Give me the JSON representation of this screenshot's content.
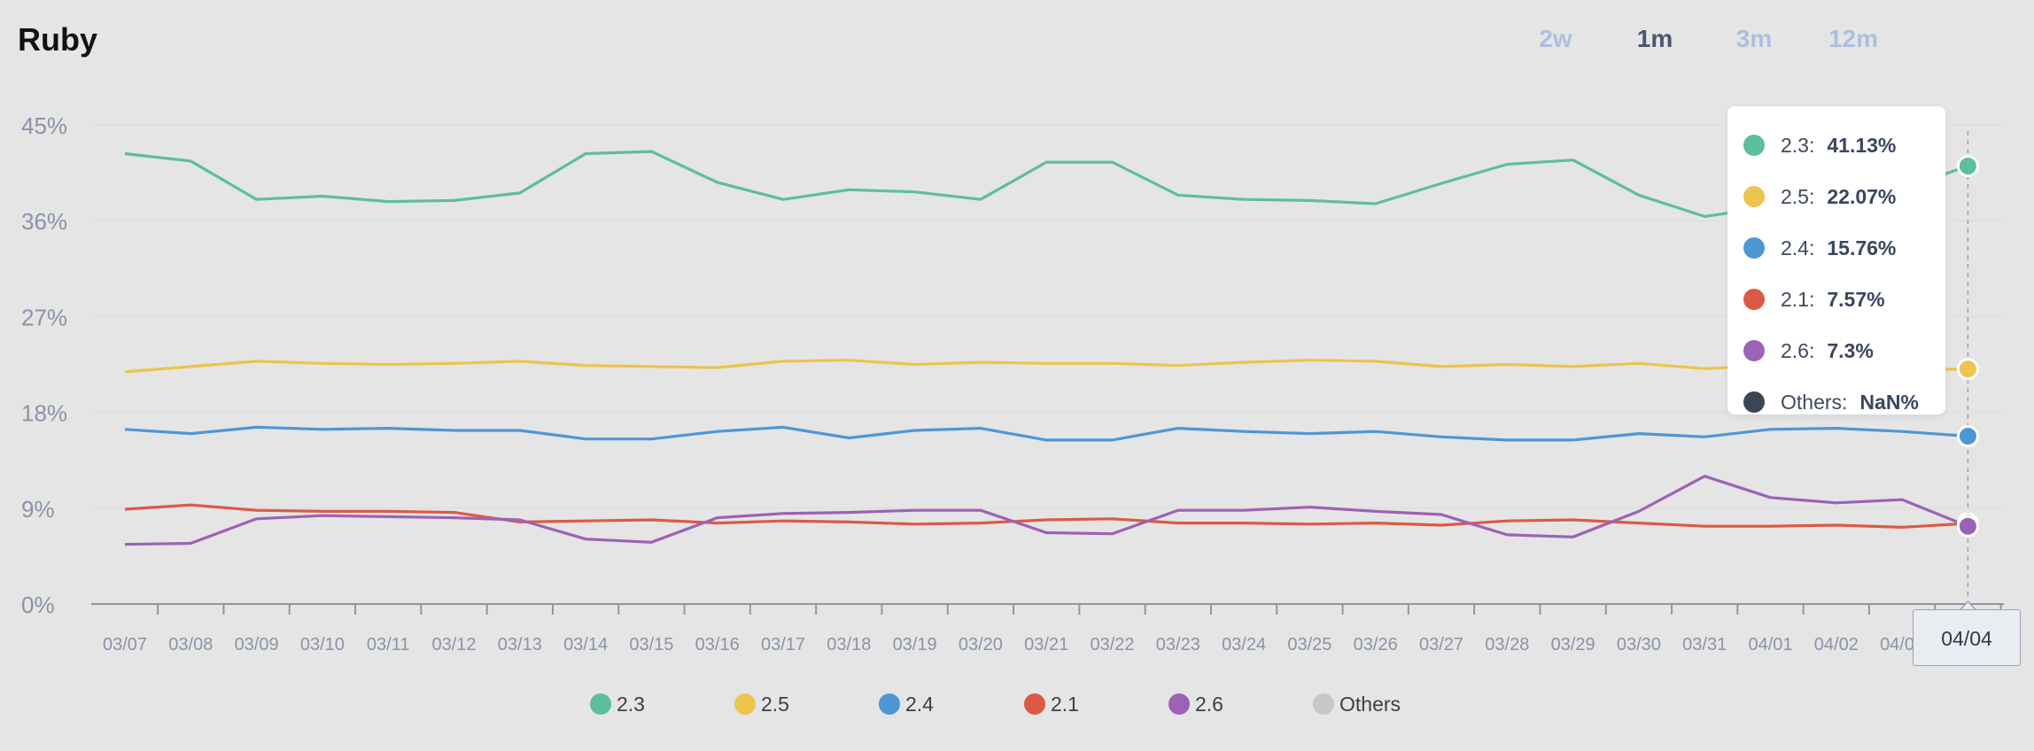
{
  "title": "Ruby",
  "range_tabs": [
    {
      "label": "2w",
      "active": false
    },
    {
      "label": "1m",
      "active": true
    },
    {
      "label": "3m",
      "active": false
    },
    {
      "label": "12m",
      "active": false
    }
  ],
  "tooltip": {
    "x_label": "04/04",
    "rows": [
      {
        "label": "2.3:",
        "value": "41.13%",
        "color": "#5dbe9b"
      },
      {
        "label": "2.5:",
        "value": "22.07%",
        "color": "#ecc44e"
      },
      {
        "label": "2.4:",
        "value": "15.76%",
        "color": "#4f96d5"
      },
      {
        "label": "2.1:",
        "value": "7.57%",
        "color": "#db5a45"
      },
      {
        "label": "2.6:",
        "value": "7.3%",
        "color": "#9c62b5"
      },
      {
        "label": "Others:",
        "value": "NaN%",
        "color": "#3a4556"
      }
    ]
  },
  "legend": [
    {
      "label": "2.3",
      "color": "#5dbe9b"
    },
    {
      "label": "2.5",
      "color": "#ecc44e"
    },
    {
      "label": "2.4",
      "color": "#4f96d5"
    },
    {
      "label": "2.1",
      "color": "#db5a45"
    },
    {
      "label": "2.6",
      "color": "#9c62b5"
    },
    {
      "label": "Others",
      "color": "#c7c7c7"
    }
  ],
  "chart_data": {
    "type": "line",
    "title": "Ruby",
    "xlabel": "",
    "ylabel": "",
    "ylim": [
      0,
      45
    ],
    "yticks": [
      "0%",
      "9%",
      "18%",
      "27%",
      "36%",
      "45%"
    ],
    "grid": true,
    "legend_position": "bottom",
    "x": [
      "03/07",
      "03/08",
      "03/09",
      "03/10",
      "03/11",
      "03/12",
      "03/13",
      "03/14",
      "03/15",
      "03/16",
      "03/17",
      "03/18",
      "03/19",
      "03/20",
      "03/21",
      "03/22",
      "03/23",
      "03/24",
      "03/25",
      "03/26",
      "03/27",
      "03/28",
      "03/29",
      "03/30",
      "03/31",
      "04/01",
      "04/02",
      "04/03",
      "04/04"
    ],
    "series": [
      {
        "name": "2.3",
        "color": "#5dbe9b",
        "values": [
          42.3,
          41.6,
          38.0,
          38.3,
          37.8,
          37.9,
          38.6,
          42.3,
          42.5,
          39.6,
          38.0,
          38.9,
          38.7,
          38.0,
          41.5,
          41.5,
          38.4,
          38.0,
          37.9,
          37.6,
          39.5,
          41.3,
          41.7,
          38.4,
          36.4,
          37.3,
          37.7,
          39.0,
          41.13
        ]
      },
      {
        "name": "2.5",
        "color": "#ecc44e",
        "values": [
          21.8,
          22.3,
          22.8,
          22.6,
          22.5,
          22.6,
          22.8,
          22.4,
          22.3,
          22.2,
          22.8,
          22.9,
          22.5,
          22.7,
          22.6,
          22.6,
          22.4,
          22.7,
          22.9,
          22.8,
          22.3,
          22.5,
          22.3,
          22.6,
          22.1,
          22.4,
          22.2,
          22.0,
          22.07
        ]
      },
      {
        "name": "2.4",
        "color": "#4f96d5",
        "values": [
          16.4,
          16.0,
          16.6,
          16.4,
          16.5,
          16.3,
          16.3,
          15.5,
          15.5,
          16.2,
          16.6,
          15.6,
          16.3,
          16.5,
          15.4,
          15.4,
          16.5,
          16.2,
          16.0,
          16.2,
          15.7,
          15.4,
          15.4,
          16.0,
          15.7,
          16.4,
          16.5,
          16.2,
          15.76
        ]
      },
      {
        "name": "2.1",
        "color": "#db5a45",
        "values": [
          8.9,
          9.3,
          8.8,
          8.7,
          8.7,
          8.6,
          7.7,
          7.8,
          7.9,
          7.6,
          7.8,
          7.7,
          7.5,
          7.6,
          7.9,
          8.0,
          7.6,
          7.6,
          7.5,
          7.6,
          7.4,
          7.8,
          7.9,
          7.6,
          7.3,
          7.3,
          7.4,
          7.2,
          7.57
        ]
      },
      {
        "name": "2.6",
        "color": "#9c62b5",
        "values": [
          5.6,
          5.7,
          8.0,
          8.3,
          8.2,
          8.1,
          7.9,
          6.1,
          5.8,
          8.1,
          8.5,
          8.6,
          8.8,
          8.8,
          6.7,
          6.6,
          8.8,
          8.8,
          9.1,
          8.7,
          8.4,
          6.5,
          6.3,
          8.7,
          12.0,
          10.0,
          9.5,
          9.8,
          7.3
        ]
      }
    ]
  }
}
